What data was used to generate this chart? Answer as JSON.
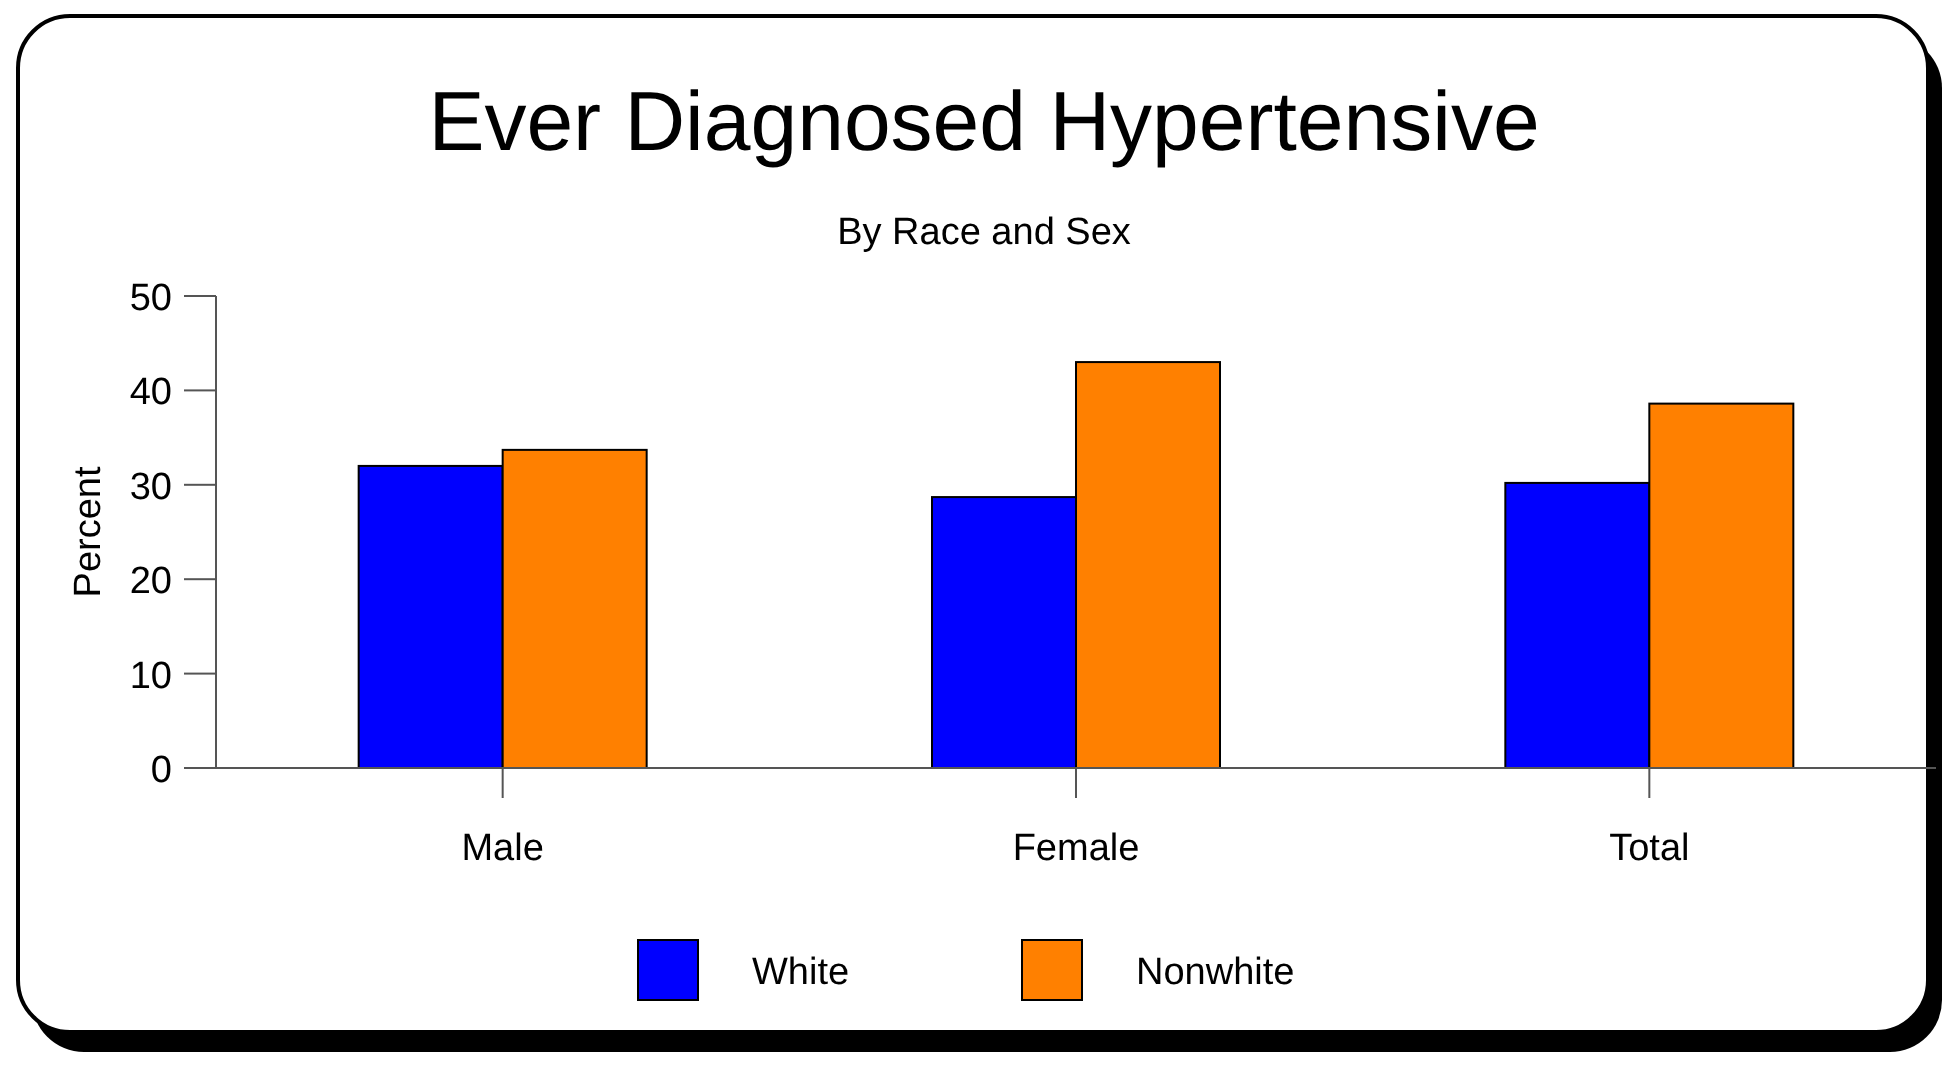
{
  "chart_data": {
    "type": "bar",
    "title": "Ever Diagnosed Hypertensive",
    "subtitle": "By Race and Sex",
    "ylabel": "Percent",
    "categories": [
      "Male",
      "Female",
      "Total"
    ],
    "series": [
      {
        "name": "White",
        "color": "#0000ff",
        "values": [
          32.0,
          28.7,
          30.2
        ]
      },
      {
        "name": "Nonwhite",
        "color": "#ff8000",
        "values": [
          33.7,
          43.0,
          38.6
        ]
      }
    ],
    "ylim": [
      0,
      50
    ],
    "yticks": [
      0,
      10,
      20,
      30,
      40,
      50
    ],
    "grid": false,
    "legend": "bottom"
  }
}
